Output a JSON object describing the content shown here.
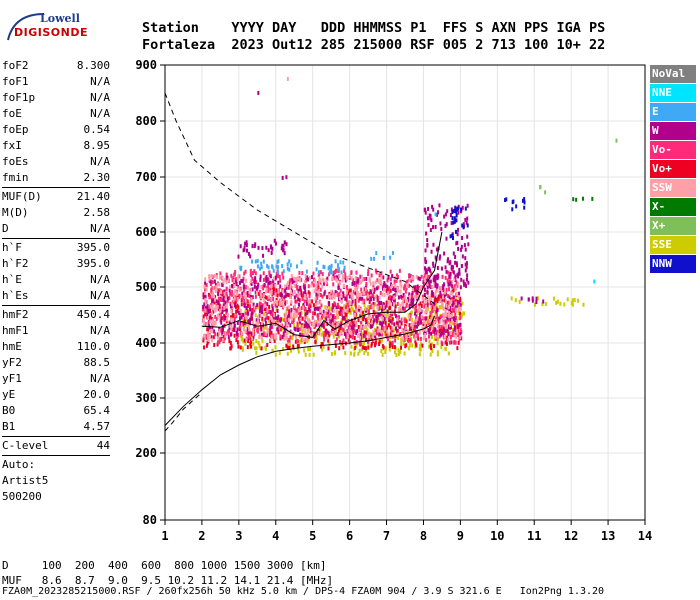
{
  "logo": {
    "line1": "Lowell",
    "line2": "DIGISONDE"
  },
  "header": {
    "line1": "Station    YYYY DAY   DDD HHMMSS P1  FFS S AXN PPS IGA PS",
    "line2": "Fortaleza  2023 Out12 285 215000 RSF 005 2 713 100 10+ 22"
  },
  "params": {
    "group1": [
      {
        "name": "foF2",
        "value": "8.300"
      },
      {
        "name": "foF1",
        "value": "N/A"
      },
      {
        "name": "foF1p",
        "value": "N/A"
      },
      {
        "name": "foE",
        "value": "N/A"
      },
      {
        "name": "foEp",
        "value": "0.54"
      },
      {
        "name": "fxI",
        "value": "8.95"
      },
      {
        "name": "foEs",
        "value": "N/A"
      },
      {
        "name": "fmin",
        "value": "2.30"
      }
    ],
    "group2": [
      {
        "name": "MUF(D)",
        "value": "21.40"
      },
      {
        "name": "M(D)",
        "value": "2.58"
      },
      {
        "name": "D",
        "value": "N/A"
      }
    ],
    "group3": [
      {
        "name": "h`F",
        "value": "395.0"
      },
      {
        "name": "h`F2",
        "value": "395.0"
      },
      {
        "name": "h`E",
        "value": "N/A"
      },
      {
        "name": "h`Es",
        "value": "N/A"
      }
    ],
    "group4": [
      {
        "name": "hmF2",
        "value": "450.4"
      },
      {
        "name": "hmF1",
        "value": "N/A"
      },
      {
        "name": "hmE",
        "value": "110.0"
      },
      {
        "name": "yF2",
        "value": "88.5"
      },
      {
        "name": "yF1",
        "value": "N/A"
      },
      {
        "name": "yE",
        "value": "20.0"
      },
      {
        "name": "B0",
        "value": "65.4"
      },
      {
        "name": "B1",
        "value": "4.57"
      }
    ],
    "group5": [
      {
        "name": "C-level",
        "value": "44"
      }
    ],
    "auto_label": "Auto:",
    "artist": "Artist5",
    "version": "500200"
  },
  "legend": [
    {
      "label": "NoVal",
      "color": "#808080"
    },
    {
      "label": "NNE",
      "color": "#00e5ff"
    },
    {
      "label": "E",
      "color": "#3fa9f5"
    },
    {
      "label": "W",
      "color": "#b0008c"
    },
    {
      "label": "Vo-",
      "color": "#ff2a7a"
    },
    {
      "label": "Vo+",
      "color": "#ee0022"
    },
    {
      "label": "SSW",
      "color": "#ff9fa8"
    },
    {
      "label": "X-",
      "color": "#007a00"
    },
    {
      "label": "X+",
      "color": "#7fbf5a"
    },
    {
      "label": "SSE",
      "color": "#cccc00"
    },
    {
      "label": "NNW",
      "color": "#1010cc"
    }
  ],
  "footer": {
    "line1": "D     100  200  400  600  800 1000 1500 3000 [km]",
    "line2": "MUF   8.6  8.7  9.0  9.5 10.2 11.2 14.1 21.4 [MHz]",
    "fileinfo": "FZA0M_2023285215000.RSF / 260fx256h 50 kHz 5.0 km / DPS-4 FZA0M 904 / 3.9 S 321.6 E   Ion2Png 1.3.20"
  },
  "chart_data": {
    "type": "scatter",
    "x_ticks": [
      1,
      2,
      3,
      4,
      5,
      6,
      7,
      8,
      9,
      10,
      11,
      12,
      13,
      14
    ],
    "y_ticks": [
      80,
      200,
      300,
      400,
      500,
      600,
      700,
      800,
      900
    ],
    "xlim": [
      1,
      14
    ],
    "ylim": [
      80,
      900
    ],
    "grid": true,
    "legend_position": "right",
    "clusters": [
      {
        "series": "SSE",
        "x": [
          3.0,
          8.8
        ],
        "y": [
          378,
          470
        ]
      },
      {
        "series": "SSE",
        "x": [
          8.0,
          9.1
        ],
        "y": [
          435,
          480
        ]
      },
      {
        "series": "Vo+",
        "x": [
          2.0,
          9.0
        ],
        "y": [
          390,
          500
        ]
      },
      {
        "series": "Vo-",
        "x": [
          2.0,
          9.0
        ],
        "y": [
          400,
          530
        ]
      },
      {
        "series": "W",
        "x": [
          2.0,
          9.0
        ],
        "y": [
          410,
          520
        ]
      },
      {
        "series": "SSW",
        "x": [
          2.0,
          9.0
        ],
        "y": [
          405,
          520
        ]
      },
      {
        "series": "E",
        "x": [
          3.0,
          6.0
        ],
        "y": [
          525,
          548
        ]
      },
      {
        "series": "E",
        "x": [
          6.5,
          7.2
        ],
        "y": [
          550,
          562
        ]
      },
      {
        "series": "W",
        "x": [
          2.8,
          4.3
        ],
        "y": [
          555,
          585
        ]
      },
      {
        "series": "W",
        "x": [
          8.0,
          9.2
        ],
        "y": [
          500,
          650
        ]
      },
      {
        "series": "NNW",
        "x": [
          8.7,
          9.2
        ],
        "y": [
          585,
          645
        ]
      },
      {
        "series": "NNW",
        "x": [
          10.1,
          10.8
        ],
        "y": [
          640,
          660
        ]
      },
      {
        "series": "W",
        "x": [
          4.0,
          4.4
        ],
        "y": [
          695,
          702
        ]
      },
      {
        "series": "W",
        "x": [
          3.5,
          3.5
        ],
        "y": [
          850,
          850
        ]
      },
      {
        "series": "SSW",
        "x": [
          4.3,
          4.3
        ],
        "y": [
          875,
          875
        ]
      },
      {
        "series": "SSE",
        "x": [
          10.3,
          12.5
        ],
        "y": [
          468,
          480
        ]
      },
      {
        "series": "W",
        "x": [
          10.5,
          11.4
        ],
        "y": [
          468,
          480
        ]
      },
      {
        "series": "X-",
        "x": [
          12.0,
          12.6
        ],
        "y": [
          655,
          665
        ]
      },
      {
        "series": "X+",
        "x": [
          11.1,
          11.4
        ],
        "y": [
          668,
          682
        ]
      },
      {
        "series": "X+",
        "x": [
          13.2,
          13.2
        ],
        "y": [
          765,
          765
        ]
      },
      {
        "series": "NNE",
        "x": [
          12.6,
          12.6
        ],
        "y": [
          510,
          510
        ]
      },
      {
        "series": "NNE",
        "x": [
          8.3,
          8.3
        ],
        "y": [
          630,
          635
        ]
      }
    ],
    "profile_solid": [
      [
        1.0,
        250
      ],
      [
        1.5,
        285
      ],
      [
        2.0,
        315
      ],
      [
        2.5,
        342
      ],
      [
        3.0,
        360
      ],
      [
        3.5,
        375
      ],
      [
        4.0,
        385
      ],
      [
        4.5,
        390
      ],
      [
        5.0,
        394
      ],
      [
        5.5,
        397
      ],
      [
        6.0,
        400
      ],
      [
        6.5,
        404
      ],
      [
        7.0,
        410
      ],
      [
        7.5,
        416
      ],
      [
        8.0,
        425
      ],
      [
        8.2,
        432
      ],
      [
        8.3,
        448
      ]
    ],
    "profile_dashed_lower": [
      [
        1.0,
        240
      ],
      [
        1.2,
        255
      ],
      [
        1.5,
        280
      ],
      [
        1.8,
        298
      ],
      [
        2.0,
        310
      ]
    ],
    "profile_dashed_upper": [
      [
        1.0,
        850
      ],
      [
        1.3,
        800
      ],
      [
        1.8,
        730
      ],
      [
        2.5,
        690
      ],
      [
        3.5,
        640
      ],
      [
        4.5,
        600
      ],
      [
        5.5,
        560
      ],
      [
        6.5,
        535
      ],
      [
        7.5,
        510
      ],
      [
        8.3,
        470
      ]
    ],
    "trace_hprime": [
      [
        2.0,
        430
      ],
      [
        2.5,
        428
      ],
      [
        3.0,
        440
      ],
      [
        3.5,
        430
      ],
      [
        4.0,
        435
      ],
      [
        4.5,
        415
      ],
      [
        5.0,
        410
      ],
      [
        5.3,
        440
      ],
      [
        5.6,
        425
      ],
      [
        6.0,
        440
      ],
      [
        6.5,
        452
      ],
      [
        7.0,
        455
      ],
      [
        7.5,
        455
      ],
      [
        7.8,
        470
      ],
      [
        8.0,
        500
      ],
      [
        8.3,
        530
      ],
      [
        8.5,
        600
      ]
    ]
  }
}
